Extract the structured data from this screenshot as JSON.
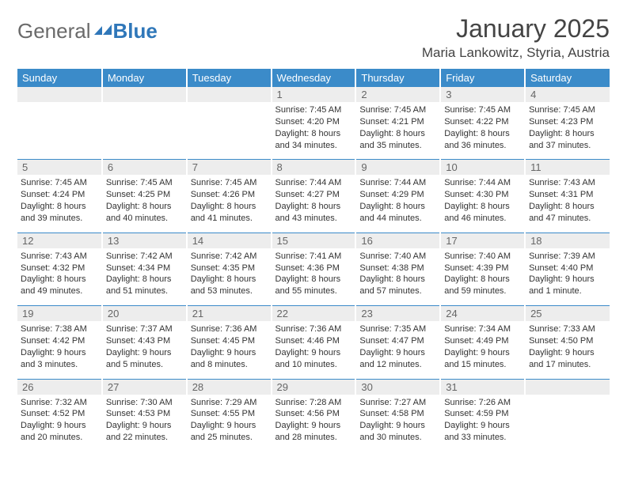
{
  "logo": {
    "general": "General",
    "blue": "Blue"
  },
  "title": "January 2025",
  "location": "Maria Lankowitz, Styria, Austria",
  "header_bg": "#3b8bc9",
  "daynum_bg": "#ededed",
  "days_of_week": [
    "Sunday",
    "Monday",
    "Tuesday",
    "Wednesday",
    "Thursday",
    "Friday",
    "Saturday"
  ],
  "weeks": [
    [
      {
        "n": "",
        "lines": []
      },
      {
        "n": "",
        "lines": []
      },
      {
        "n": "",
        "lines": []
      },
      {
        "n": "1",
        "lines": [
          "Sunrise: 7:45 AM",
          "Sunset: 4:20 PM",
          "Daylight: 8 hours",
          "and 34 minutes."
        ]
      },
      {
        "n": "2",
        "lines": [
          "Sunrise: 7:45 AM",
          "Sunset: 4:21 PM",
          "Daylight: 8 hours",
          "and 35 minutes."
        ]
      },
      {
        "n": "3",
        "lines": [
          "Sunrise: 7:45 AM",
          "Sunset: 4:22 PM",
          "Daylight: 8 hours",
          "and 36 minutes."
        ]
      },
      {
        "n": "4",
        "lines": [
          "Sunrise: 7:45 AM",
          "Sunset: 4:23 PM",
          "Daylight: 8 hours",
          "and 37 minutes."
        ]
      }
    ],
    [
      {
        "n": "5",
        "lines": [
          "Sunrise: 7:45 AM",
          "Sunset: 4:24 PM",
          "Daylight: 8 hours",
          "and 39 minutes."
        ]
      },
      {
        "n": "6",
        "lines": [
          "Sunrise: 7:45 AM",
          "Sunset: 4:25 PM",
          "Daylight: 8 hours",
          "and 40 minutes."
        ]
      },
      {
        "n": "7",
        "lines": [
          "Sunrise: 7:45 AM",
          "Sunset: 4:26 PM",
          "Daylight: 8 hours",
          "and 41 minutes."
        ]
      },
      {
        "n": "8",
        "lines": [
          "Sunrise: 7:44 AM",
          "Sunset: 4:27 PM",
          "Daylight: 8 hours",
          "and 43 minutes."
        ]
      },
      {
        "n": "9",
        "lines": [
          "Sunrise: 7:44 AM",
          "Sunset: 4:29 PM",
          "Daylight: 8 hours",
          "and 44 minutes."
        ]
      },
      {
        "n": "10",
        "lines": [
          "Sunrise: 7:44 AM",
          "Sunset: 4:30 PM",
          "Daylight: 8 hours",
          "and 46 minutes."
        ]
      },
      {
        "n": "11",
        "lines": [
          "Sunrise: 7:43 AM",
          "Sunset: 4:31 PM",
          "Daylight: 8 hours",
          "and 47 minutes."
        ]
      }
    ],
    [
      {
        "n": "12",
        "lines": [
          "Sunrise: 7:43 AM",
          "Sunset: 4:32 PM",
          "Daylight: 8 hours",
          "and 49 minutes."
        ]
      },
      {
        "n": "13",
        "lines": [
          "Sunrise: 7:42 AM",
          "Sunset: 4:34 PM",
          "Daylight: 8 hours",
          "and 51 minutes."
        ]
      },
      {
        "n": "14",
        "lines": [
          "Sunrise: 7:42 AM",
          "Sunset: 4:35 PM",
          "Daylight: 8 hours",
          "and 53 minutes."
        ]
      },
      {
        "n": "15",
        "lines": [
          "Sunrise: 7:41 AM",
          "Sunset: 4:36 PM",
          "Daylight: 8 hours",
          "and 55 minutes."
        ]
      },
      {
        "n": "16",
        "lines": [
          "Sunrise: 7:40 AM",
          "Sunset: 4:38 PM",
          "Daylight: 8 hours",
          "and 57 minutes."
        ]
      },
      {
        "n": "17",
        "lines": [
          "Sunrise: 7:40 AM",
          "Sunset: 4:39 PM",
          "Daylight: 8 hours",
          "and 59 minutes."
        ]
      },
      {
        "n": "18",
        "lines": [
          "Sunrise: 7:39 AM",
          "Sunset: 4:40 PM",
          "Daylight: 9 hours",
          "and 1 minute."
        ]
      }
    ],
    [
      {
        "n": "19",
        "lines": [
          "Sunrise: 7:38 AM",
          "Sunset: 4:42 PM",
          "Daylight: 9 hours",
          "and 3 minutes."
        ]
      },
      {
        "n": "20",
        "lines": [
          "Sunrise: 7:37 AM",
          "Sunset: 4:43 PM",
          "Daylight: 9 hours",
          "and 5 minutes."
        ]
      },
      {
        "n": "21",
        "lines": [
          "Sunrise: 7:36 AM",
          "Sunset: 4:45 PM",
          "Daylight: 9 hours",
          "and 8 minutes."
        ]
      },
      {
        "n": "22",
        "lines": [
          "Sunrise: 7:36 AM",
          "Sunset: 4:46 PM",
          "Daylight: 9 hours",
          "and 10 minutes."
        ]
      },
      {
        "n": "23",
        "lines": [
          "Sunrise: 7:35 AM",
          "Sunset: 4:47 PM",
          "Daylight: 9 hours",
          "and 12 minutes."
        ]
      },
      {
        "n": "24",
        "lines": [
          "Sunrise: 7:34 AM",
          "Sunset: 4:49 PM",
          "Daylight: 9 hours",
          "and 15 minutes."
        ]
      },
      {
        "n": "25",
        "lines": [
          "Sunrise: 7:33 AM",
          "Sunset: 4:50 PM",
          "Daylight: 9 hours",
          "and 17 minutes."
        ]
      }
    ],
    [
      {
        "n": "26",
        "lines": [
          "Sunrise: 7:32 AM",
          "Sunset: 4:52 PM",
          "Daylight: 9 hours",
          "and 20 minutes."
        ]
      },
      {
        "n": "27",
        "lines": [
          "Sunrise: 7:30 AM",
          "Sunset: 4:53 PM",
          "Daylight: 9 hours",
          "and 22 minutes."
        ]
      },
      {
        "n": "28",
        "lines": [
          "Sunrise: 7:29 AM",
          "Sunset: 4:55 PM",
          "Daylight: 9 hours",
          "and 25 minutes."
        ]
      },
      {
        "n": "29",
        "lines": [
          "Sunrise: 7:28 AM",
          "Sunset: 4:56 PM",
          "Daylight: 9 hours",
          "and 28 minutes."
        ]
      },
      {
        "n": "30",
        "lines": [
          "Sunrise: 7:27 AM",
          "Sunset: 4:58 PM",
          "Daylight: 9 hours",
          "and 30 minutes."
        ]
      },
      {
        "n": "31",
        "lines": [
          "Sunrise: 7:26 AM",
          "Sunset: 4:59 PM",
          "Daylight: 9 hours",
          "and 33 minutes."
        ]
      },
      {
        "n": "",
        "lines": []
      }
    ]
  ]
}
